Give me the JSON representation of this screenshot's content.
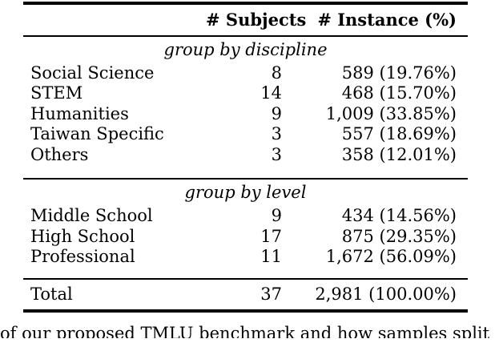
{
  "table": {
    "header": {
      "subjects": "# Subjects",
      "instance": "# Instance (%)"
    },
    "groups": [
      {
        "label": "group by discipline",
        "rows": [
          {
            "label": "Social Science",
            "subjects": "8",
            "instance": "589 (19.76%)"
          },
          {
            "label": "STEM",
            "subjects": "14",
            "instance": "468 (15.70%)"
          },
          {
            "label": "Humanities",
            "subjects": "9",
            "instance": "1,009 (33.85%)"
          },
          {
            "label": "Taiwan Specific",
            "subjects": "3",
            "instance": "557 (18.69%)"
          },
          {
            "label": "Others",
            "subjects": "3",
            "instance": "358 (12.01%)"
          }
        ]
      },
      {
        "label": "group by level",
        "rows": [
          {
            "label": "Middle School",
            "subjects": "9",
            "instance": "434 (14.56%)"
          },
          {
            "label": "High School",
            "subjects": "17",
            "instance": "875 (29.35%)"
          },
          {
            "label": "Professional",
            "subjects": "11",
            "instance": "1,672 (56.09%)"
          }
        ]
      }
    ],
    "total": {
      "label": "Total",
      "subjects": "37",
      "instance": "2,981 (100.00%)"
    }
  },
  "caption": {
    "text": "of our proposed TMLU benchmark and how samples split by diff"
  },
  "colors": {
    "background": "#ffffff",
    "text": "#000000",
    "rule": "#000000"
  }
}
